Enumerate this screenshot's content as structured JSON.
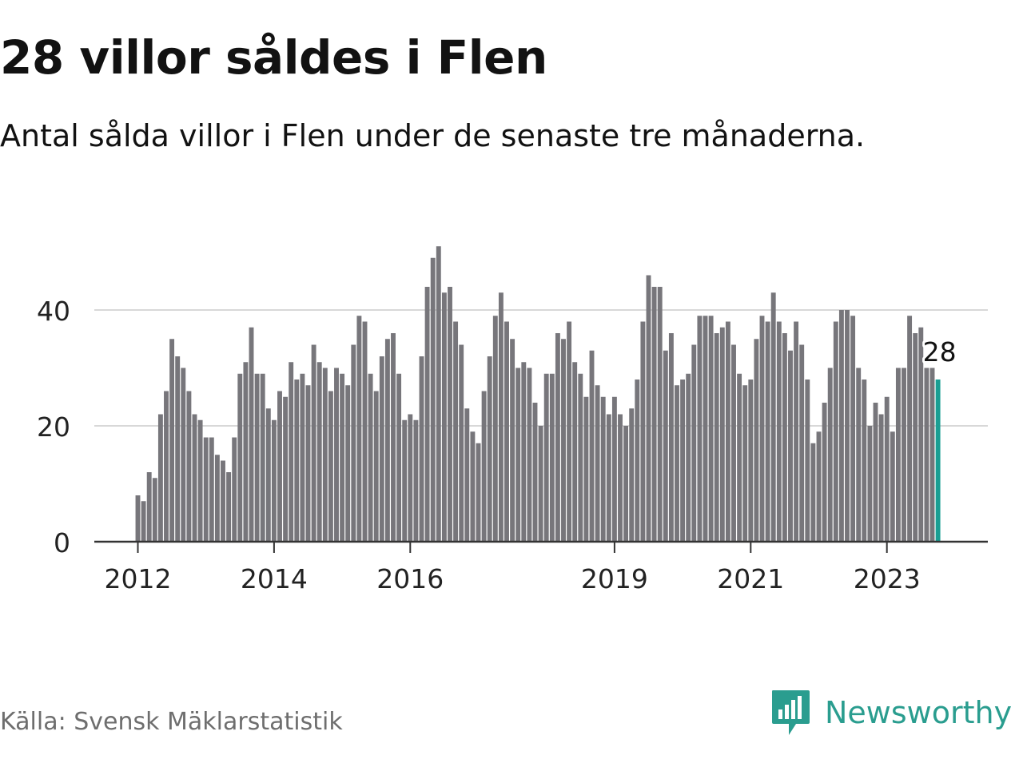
{
  "header": {
    "title": "28 villor såldes i Flen",
    "subtitle": "Antal sålda villor i Flen under de senaste tre månaderna."
  },
  "footer": {
    "source": "Källa: Svensk Mäklarstatistik",
    "brand": "Newsworthy"
  },
  "colors": {
    "bar": "#77767b",
    "highlight": "#1a9e93",
    "grid": "#d8d8d8",
    "axis": "#333333",
    "brand": "#2a9d8f"
  },
  "chart_data": {
    "type": "bar",
    "x_start": "2012-01",
    "interval": "month",
    "values": [
      8,
      7,
      12,
      11,
      22,
      26,
      35,
      32,
      30,
      26,
      22,
      21,
      18,
      18,
      15,
      14,
      12,
      18,
      29,
      31,
      37,
      29,
      29,
      23,
      21,
      26,
      25,
      31,
      28,
      29,
      27,
      34,
      31,
      30,
      26,
      30,
      29,
      27,
      34,
      39,
      38,
      29,
      26,
      32,
      35,
      36,
      29,
      21,
      22,
      21,
      32,
      44,
      49,
      51,
      43,
      44,
      38,
      34,
      23,
      19,
      17,
      26,
      32,
      39,
      43,
      38,
      35,
      30,
      31,
      30,
      24,
      20,
      29,
      29,
      36,
      35,
      38,
      31,
      29,
      25,
      33,
      27,
      25,
      22,
      25,
      22,
      20,
      23,
      28,
      38,
      46,
      44,
      44,
      33,
      36,
      27,
      28,
      29,
      34,
      39,
      39,
      39,
      36,
      37,
      38,
      34,
      29,
      27,
      28,
      35,
      39,
      38,
      43,
      38,
      36,
      33,
      38,
      34,
      28,
      17,
      19,
      24,
      30,
      38,
      40,
      40,
      39,
      30,
      28,
      20,
      24,
      22,
      25,
      19,
      30,
      30,
      39,
      36,
      37,
      30,
      30,
      28
    ],
    "highlight_last": true,
    "value_label": "28",
    "xtick_labels": [
      "2012",
      "2014",
      "2016",
      "2019",
      "2021",
      "2023"
    ],
    "xtick_dates": [
      "2012-01",
      "2014-01",
      "2016-01",
      "2019-01",
      "2021-01",
      "2023-01"
    ],
    "yticks": [
      0,
      20,
      40
    ],
    "ylim": [
      0,
      52
    ],
    "grid": true,
    "xlabel": "",
    "ylabel": ""
  }
}
